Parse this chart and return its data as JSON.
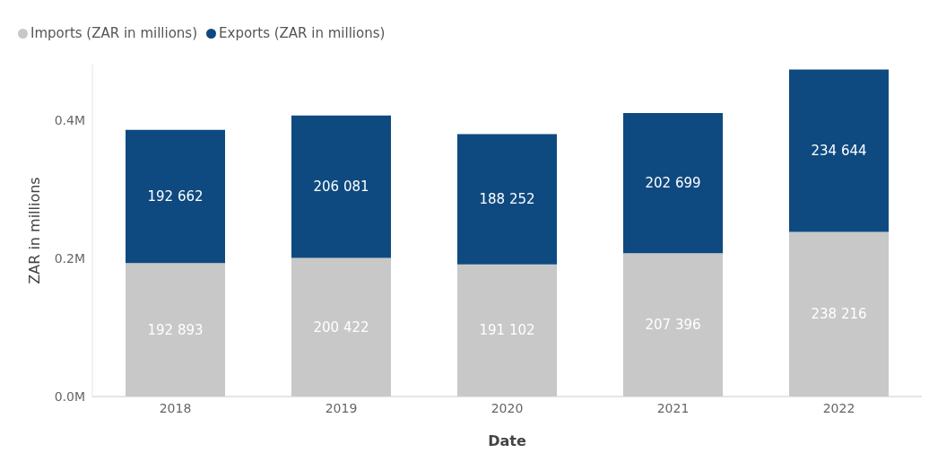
{
  "chart_data": {
    "type": "bar",
    "stacked": true,
    "xlabel": "Date",
    "ylabel": "ZAR in millions",
    "categories": [
      "2018",
      "2019",
      "2020",
      "2021",
      "2022"
    ],
    "series": [
      {
        "name": "Imports (ZAR in millions)",
        "color": "#c8c8c8",
        "values": [
          192893,
          200422,
          191102,
          207396,
          238216
        ],
        "value_labels": [
          "192 893",
          "200 422",
          "191 102",
          "207 396",
          "238 216"
        ]
      },
      {
        "name": "Exports (ZAR in millions)",
        "color": "#0e4a80",
        "values": [
          192662,
          206081,
          188252,
          202699,
          234644
        ],
        "value_labels": [
          "192 662",
          "206 081",
          "188 252",
          "202 699",
          "234 644"
        ]
      }
    ],
    "ylim": [
      0,
      480000
    ],
    "yticks": [
      {
        "value": 0,
        "label": "0.0M"
      },
      {
        "value": 200000,
        "label": "0.2M"
      },
      {
        "value": 400000,
        "label": "0.4M"
      }
    ],
    "legend": "top left"
  }
}
